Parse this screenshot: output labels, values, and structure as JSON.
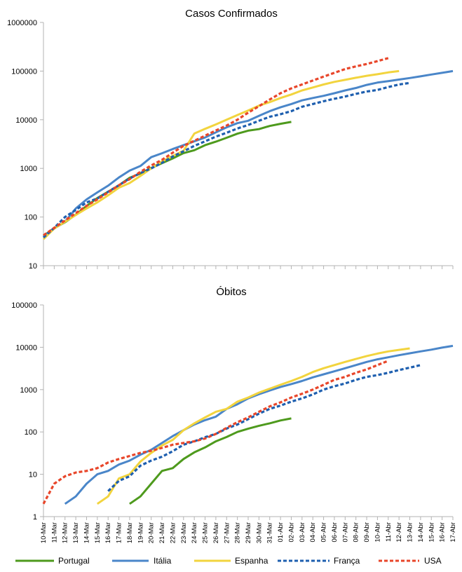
{
  "chart_data": [
    {
      "type": "line",
      "title": "Casos Confirmados",
      "yscale": "log",
      "ylim": [
        10,
        1000000
      ],
      "ytick_labels": [
        "10",
        "100",
        "1000",
        "10000",
        "100000",
        "1000000"
      ],
      "x": [
        "10-Mar",
        "11-Mar",
        "12-Mar",
        "13-Mar",
        "14-Mar",
        "15-Mar",
        "16-Mar",
        "17-Mar",
        "18-Mar",
        "19-Mar",
        "20-Mar",
        "21-Mar",
        "22-Mar",
        "23-Mar",
        "24-Mar",
        "25-Mar",
        "26-Mar",
        "27-Mar",
        "28-Mar",
        "29-Mar",
        "30-Mar",
        "31-Mar",
        "01-Abr",
        "02-Abr",
        "03-Abr",
        "04-Abr",
        "05-Abr",
        "06-Abr",
        "07-Abr",
        "08-Abr",
        "09-Abr",
        "10-Abr",
        "11-Abr",
        "12-Abr",
        "13-Abr",
        "14-Abr",
        "15-Abr",
        "16-Abr",
        "17-Abr"
      ],
      "grid": false,
      "series": [
        {
          "name": "Portugal",
          "values": [
            41,
            59,
            78,
            112,
            169,
            245,
            331,
            448,
            642,
            785,
            1020,
            1280,
            1600,
            2060,
            2362,
            2995,
            3544,
            4268,
            5170,
            5962,
            6408,
            7443,
            8251,
            9034,
            null,
            null,
            null,
            null,
            null,
            null,
            null,
            null,
            null,
            null,
            null,
            null,
            null,
            null,
            null
          ]
        },
        {
          "name": "Itália",
          "values": [
            40,
            58,
            80,
            150,
            230,
            320,
            440,
            650,
            900,
            1120,
            1700,
            2050,
            2500,
            3000,
            3600,
            4300,
            5500,
            7000,
            8500,
            9500,
            12000,
            15000,
            18000,
            21000,
            25000,
            28000,
            31000,
            35000,
            40000,
            45000,
            52000,
            58000,
            62000,
            67000,
            72000,
            78000,
            85000,
            92000,
            100000
          ]
        },
        {
          "name": "Espanha",
          "values": [
            35,
            58,
            80,
            110,
            150,
            200,
            280,
            400,
            500,
            700,
            1000,
            1400,
            1800,
            2300,
            5200,
            6500,
            8000,
            10000,
            12500,
            15500,
            19500,
            23000,
            28000,
            33000,
            40000,
            46000,
            53000,
            60000,
            66000,
            73000,
            80000,
            86000,
            94000,
            100000,
            null,
            null,
            null,
            null,
            null
          ]
        },
        {
          "name": "França",
          "values": [
            38,
            60,
            100,
            140,
            200,
            240,
            330,
            450,
            620,
            800,
            1000,
            1300,
            1750,
            2250,
            2900,
            3600,
            4500,
            5400,
            6600,
            7800,
            9500,
            11500,
            13000,
            15000,
            18500,
            21000,
            24000,
            27000,
            30000,
            34000,
            38000,
            41000,
            47000,
            53000,
            57000,
            null,
            null,
            null,
            null
          ]
        },
        {
          "name": "USA",
          "values": [
            42,
            60,
            85,
            120,
            170,
            230,
            320,
            450,
            600,
            850,
            1150,
            1500,
            2100,
            2900,
            3700,
            4700,
            6000,
            7600,
            10000,
            14000,
            19000,
            26000,
            35000,
            44000,
            53000,
            64000,
            77000,
            92000,
            110000,
            125000,
            140000,
            160000,
            185000,
            null,
            null,
            null,
            null,
            null,
            null
          ]
        }
      ]
    },
    {
      "type": "line",
      "title": "Óbitos",
      "yscale": "log",
      "ylim": [
        1,
        100000
      ],
      "ytick_labels": [
        "1",
        "10",
        "100",
        "1000",
        "10000",
        "100000"
      ],
      "x": [
        "10-Mar",
        "11-Mar",
        "12-Mar",
        "13-Mar",
        "14-Mar",
        "15-Mar",
        "16-Mar",
        "17-Mar",
        "18-Mar",
        "19-Mar",
        "20-Mar",
        "21-Mar",
        "22-Mar",
        "23-Mar",
        "24-Mar",
        "25-Mar",
        "26-Mar",
        "27-Mar",
        "28-Mar",
        "29-Mar",
        "30-Mar",
        "31-Mar",
        "01-Abr",
        "02-Abr",
        "03-Abr",
        "04-Abr",
        "05-Abr",
        "06-Abr",
        "07-Abr",
        "08-Abr",
        "09-Abr",
        "10-Abr",
        "11-Abr",
        "12-Abr",
        "13-Abr",
        "14-Abr",
        "15-Abr",
        "16-Abr",
        "17-Abr"
      ],
      "grid": false,
      "series": [
        {
          "name": "Portugal",
          "values": [
            null,
            null,
            null,
            null,
            null,
            null,
            null,
            null,
            2,
            3,
            6,
            12,
            14,
            23,
            33,
            43,
            60,
            76,
            100,
            119,
            140,
            160,
            187,
            209,
            null,
            null,
            null,
            null,
            null,
            null,
            null,
            null,
            null,
            null,
            null,
            null,
            null,
            null,
            null
          ]
        },
        {
          "name": "Itália",
          "values": [
            null,
            null,
            2,
            3,
            6,
            10,
            12,
            17,
            21,
            29,
            38,
            55,
            80,
            110,
            150,
            190,
            230,
            350,
            450,
            620,
            780,
            950,
            1150,
            1350,
            1600,
            1950,
            2300,
            2700,
            3200,
            3800,
            4500,
            5200,
            5800,
            6500,
            7200,
            8000,
            8800,
            9800,
            10800
          ]
        },
        {
          "name": "Espanha",
          "values": [
            null,
            null,
            null,
            null,
            null,
            2,
            3,
            8,
            10,
            20,
            32,
            48,
            65,
            110,
            160,
            220,
            300,
            350,
            520,
            650,
            850,
            1050,
            1300,
            1600,
            2000,
            2600,
            3200,
            3800,
            4500,
            5300,
            6200,
            7100,
            8000,
            8700,
            9400,
            null,
            null,
            null,
            null
          ]
        },
        {
          "name": "França",
          "values": [
            null,
            null,
            null,
            null,
            null,
            null,
            4,
            7,
            9,
            16,
            21,
            26,
            35,
            50,
            60,
            75,
            90,
            120,
            150,
            200,
            270,
            350,
            420,
            520,
            620,
            770,
            1000,
            1200,
            1400,
            1700,
            2000,
            2200,
            2500,
            2900,
            3300,
            3800,
            null,
            null,
            null
          ]
        },
        {
          "name": "USA",
          "values": [
            2,
            6,
            9,
            11,
            12,
            14,
            19,
            23,
            27,
            32,
            36,
            42,
            50,
            55,
            60,
            70,
            90,
            125,
            170,
            220,
            300,
            400,
            500,
            650,
            800,
            1000,
            1300,
            1700,
            2000,
            2500,
            3000,
            3800,
            4800,
            null,
            null,
            null,
            null,
            null,
            null
          ]
        }
      ]
    }
  ],
  "legend": [
    {
      "name": "Portugal",
      "color": "#4E9A1D",
      "dashed": false
    },
    {
      "name": "Itália",
      "color": "#4A86C9",
      "dashed": false
    },
    {
      "name": "Espanha",
      "color": "#F2D43E",
      "dashed": false
    },
    {
      "name": "França",
      "color": "#1E5FAF",
      "dashed": true
    },
    {
      "name": "USA",
      "color": "#E8462A",
      "dashed": true
    }
  ]
}
